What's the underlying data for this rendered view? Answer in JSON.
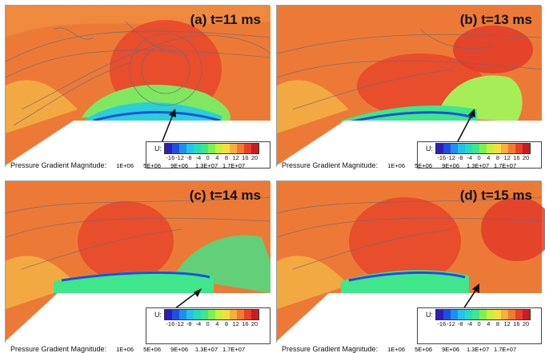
{
  "panels": [
    {
      "title": "(a) t=11 ms"
    },
    {
      "title": "(b) t=13 ms"
    },
    {
      "title": "(c) t=14 ms"
    },
    {
      "title": "(d) t=15 ms"
    }
  ],
  "velocity_legend": {
    "label": "U:",
    "ticks": [
      "-16",
      "-12",
      "-8",
      "-4",
      "0",
      "4",
      "8",
      "12",
      "16",
      "20"
    ],
    "colors": [
      "#2a1fb8",
      "#1f4fe0",
      "#1f8ff0",
      "#22c3e8",
      "#25dcc0",
      "#3fe68a",
      "#7ff050",
      "#c8f03a",
      "#f5e03a",
      "#f7b03a",
      "#f57a30",
      "#e8402a",
      "#c81e22"
    ]
  },
  "pressure_legend": {
    "label": "Pressure Gradient Magnitude:",
    "ticks": [
      "1E+06",
      "5E+06",
      "9E+06",
      "1.3E+07",
      "1.7E+07"
    ],
    "colors": [
      "#2a1fb8",
      "#1f4fe0",
      "#1f8ff0",
      "#22c3e8",
      "#25dcc0",
      "#3fe68a",
      "#7ff050",
      "#c8f03a",
      "#f5e03a",
      "#f7b03a",
      "#f57a30",
      "#e8402a",
      "#c81e22"
    ]
  }
}
